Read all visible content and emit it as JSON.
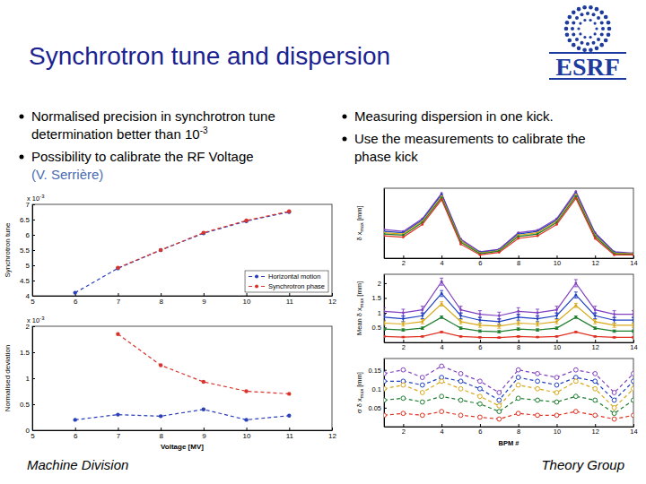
{
  "slide": {
    "title": "Synchrotron tune and dispersion",
    "logo": "ESRF",
    "left_bullets": [
      {
        "lines": [
          "Normalised precision in synchrotron tune",
          "determination better than 10"
        ],
        "sup": "-3"
      },
      {
        "lines": [
          "Possibility to calibrate the RF Voltage"
        ],
        "credit": "(V. Serrière)"
      }
    ],
    "right_bullets": [
      {
        "lines": [
          "Measuring dispersion in one kick."
        ]
      },
      {
        "lines": [
          "Use the measurements to calibrate the",
          "phase kick"
        ]
      }
    ],
    "footer_left": "Machine Division",
    "footer_right": "Theory Group"
  },
  "chart_data": [
    {
      "type": "line",
      "ylabel": "Synchrotron tune",
      "y_multiplier": {
        "base": "x 10",
        "exponent": "-3"
      },
      "xlim": [
        5,
        12
      ],
      "xticks": [
        5,
        6,
        7,
        8,
        9,
        10,
        11,
        12
      ],
      "ylim": [
        4,
        7
      ],
      "yticks": [
        4,
        4.5,
        5,
        5.5,
        6,
        6.5,
        7
      ],
      "legend": "lower right",
      "series": [
        {
          "name": "Horizontal motion",
          "color": "#2b3fb8",
          "line_style": "dashed",
          "marker": "circle",
          "x": [
            6,
            7,
            8,
            9,
            10,
            11
          ],
          "values": [
            4.1,
            4.9,
            5.5,
            6.05,
            6.45,
            6.75
          ]
        },
        {
          "name": "Synchrotron phase",
          "color": "#d9342b",
          "line_style": "dashed",
          "marker": "circle",
          "x": [
            7,
            8,
            9,
            10,
            11
          ],
          "values": [
            4.92,
            5.5,
            6.07,
            6.47,
            6.77
          ]
        }
      ]
    },
    {
      "type": "line",
      "ylabel": "Normalised deviation",
      "xlabel": "Voltage [MV]",
      "y_multiplier": {
        "base": "x 10",
        "exponent": "-3"
      },
      "xlim": [
        5,
        12
      ],
      "xticks": [
        5,
        6,
        7,
        8,
        9,
        10,
        11,
        12
      ],
      "ylim": [
        0,
        2
      ],
      "yticks": [
        0,
        0.5,
        1,
        1.5,
        2
      ],
      "series": [
        {
          "color": "#d9342b",
          "line_style": "dashed",
          "marker": "circle",
          "x": [
            7,
            8,
            9,
            10,
            11
          ],
          "values": [
            1.85,
            1.25,
            0.93,
            0.75,
            0.7
          ]
        },
        {
          "color": "#2b3fb8",
          "line_style": "dashed",
          "marker": "circle",
          "x": [
            6,
            7,
            8,
            9,
            10,
            11
          ],
          "values": [
            0.2,
            0.3,
            0.27,
            0.4,
            0.2,
            0.28
          ]
        }
      ]
    },
    {
      "type": "line",
      "ylabel": {
        "text": "δ x",
        "sub": "max",
        "unit": " [mm]"
      },
      "xlim": [
        1,
        14
      ],
      "xticks": [
        2,
        4,
        6,
        8,
        10,
        12,
        14
      ],
      "ylim": [
        0,
        1.1
      ],
      "tick_labels": "x",
      "marker": "point",
      "x": [
        1,
        2,
        3,
        4,
        5,
        6,
        7,
        8,
        9,
        10,
        11,
        12,
        13,
        14
      ],
      "series": [
        {
          "color": "#8040c0",
          "values": [
            0.45,
            0.42,
            0.62,
            1.02,
            0.3,
            0.1,
            0.14,
            0.4,
            0.44,
            0.62,
            1.05,
            0.4,
            0.1,
            0.08
          ]
        },
        {
          "color": "#2040c0",
          "values": [
            0.42,
            0.4,
            0.6,
            1.0,
            0.28,
            0.09,
            0.13,
            0.38,
            0.42,
            0.6,
            1.02,
            0.38,
            0.09,
            0.07
          ]
        },
        {
          "color": "#d8a818",
          "values": [
            0.4,
            0.38,
            0.58,
            0.97,
            0.27,
            0.08,
            0.12,
            0.36,
            0.4,
            0.58,
            1.0,
            0.36,
            0.08,
            0.07
          ]
        },
        {
          "color": "#1e7d2e",
          "values": [
            0.38,
            0.36,
            0.56,
            0.95,
            0.25,
            0.07,
            0.11,
            0.34,
            0.38,
            0.56,
            0.97,
            0.34,
            0.07,
            0.06
          ]
        },
        {
          "color": "#e03020",
          "values": [
            0.35,
            0.33,
            0.53,
            0.92,
            0.22,
            0.05,
            0.09,
            0.31,
            0.35,
            0.53,
            0.94,
            0.31,
            0.05,
            0.05
          ]
        }
      ]
    },
    {
      "type": "line",
      "ylabel": {
        "text": "Mean δ x",
        "sub": "max",
        "unit": " [mm]"
      },
      "xlim": [
        1,
        14
      ],
      "xticks": [
        2,
        4,
        6,
        8,
        10,
        12,
        14
      ],
      "ylim": [
        0,
        2.3
      ],
      "yticks": [
        0.5,
        1,
        1.5,
        2
      ],
      "marker": "point",
      "x": [
        1,
        2,
        3,
        4,
        5,
        6,
        7,
        8,
        9,
        10,
        11,
        12,
        13,
        14
      ],
      "series": [
        {
          "color": "#8040c0",
          "values": [
            1.05,
            1.0,
            1.1,
            2.05,
            1.1,
            0.95,
            0.9,
            1.05,
            1.0,
            1.1,
            2.0,
            1.1,
            0.95,
            0.95
          ],
          "errors": [
            0.12,
            0.12,
            0.12,
            0.12,
            0.12,
            0.12,
            0.12,
            0.12,
            0.12,
            0.12,
            0.12,
            0.12,
            0.12,
            0.12
          ]
        },
        {
          "color": "#2040c0",
          "values": [
            0.85,
            0.8,
            0.9,
            1.65,
            0.9,
            0.75,
            0.7,
            0.85,
            0.8,
            0.9,
            1.6,
            0.9,
            0.75,
            0.75
          ],
          "errors": [
            0.1,
            0.1,
            0.1,
            0.1,
            0.1,
            0.1,
            0.1,
            0.1,
            0.1,
            0.1,
            0.1,
            0.1,
            0.1,
            0.1
          ]
        },
        {
          "color": "#d8a818",
          "values": [
            0.65,
            0.62,
            0.7,
            1.3,
            0.7,
            0.58,
            0.55,
            0.65,
            0.62,
            0.7,
            1.25,
            0.7,
            0.58,
            0.58
          ],
          "errors": [
            0.07,
            0.07,
            0.07,
            0.07,
            0.07,
            0.07,
            0.07,
            0.07,
            0.07,
            0.07,
            0.07,
            0.07,
            0.07,
            0.07
          ]
        },
        {
          "color": "#1e7d2e",
          "values": [
            0.45,
            0.42,
            0.48,
            0.85,
            0.48,
            0.38,
            0.36,
            0.45,
            0.42,
            0.48,
            0.85,
            0.48,
            0.38,
            0.38
          ],
          "errors": [
            0.04,
            0.04,
            0.04,
            0.04,
            0.04,
            0.04,
            0.04,
            0.04,
            0.04,
            0.04,
            0.04,
            0.04,
            0.04,
            0.04
          ]
        },
        {
          "color": "#e03020",
          "values": [
            0.2,
            0.18,
            0.2,
            0.35,
            0.2,
            0.17,
            0.16,
            0.2,
            0.18,
            0.2,
            0.35,
            0.2,
            0.17,
            0.17
          ],
          "errors": [
            0.02,
            0.02,
            0.02,
            0.02,
            0.02,
            0.02,
            0.02,
            0.02,
            0.02,
            0.02,
            0.02,
            0.02,
            0.02,
            0.02
          ]
        }
      ]
    },
    {
      "type": "line",
      "ylabel": {
        "text": "σ δ x",
        "sub": "max",
        "unit": " [mm]"
      },
      "xlabel": "BPM #",
      "xlim": [
        1,
        14
      ],
      "xticks": [
        2,
        4,
        6,
        8,
        10,
        12,
        14
      ],
      "ylim": [
        0,
        0.18
      ],
      "yticks": [
        0.05,
        0.1,
        0.15
      ],
      "marker": "open_circle",
      "line_style": "dashed",
      "x": [
        1,
        2,
        3,
        4,
        5,
        6,
        7,
        8,
        9,
        10,
        11,
        12,
        13,
        14
      ],
      "series": [
        {
          "color": "#8040c0",
          "values": [
            0.14,
            0.15,
            0.13,
            0.16,
            0.14,
            0.12,
            0.09,
            0.15,
            0.14,
            0.13,
            0.15,
            0.14,
            0.09,
            0.14
          ]
        },
        {
          "color": "#2040c0",
          "values": [
            0.12,
            0.12,
            0.11,
            0.13,
            0.12,
            0.1,
            0.07,
            0.13,
            0.12,
            0.11,
            0.13,
            0.12,
            0.07,
            0.12
          ]
        },
        {
          "color": "#d8a818",
          "values": [
            0.1,
            0.11,
            0.09,
            0.12,
            0.1,
            0.08,
            0.055,
            0.11,
            0.1,
            0.09,
            0.12,
            0.1,
            0.05,
            0.1
          ]
        },
        {
          "color": "#1e7d2e",
          "values": [
            0.07,
            0.075,
            0.065,
            0.08,
            0.07,
            0.06,
            0.04,
            0.075,
            0.07,
            0.065,
            0.08,
            0.07,
            0.035,
            0.07
          ]
        },
        {
          "color": "#e03020",
          "values": [
            0.03,
            0.035,
            0.03,
            0.04,
            0.03,
            0.025,
            0.02,
            0.035,
            0.03,
            0.03,
            0.04,
            0.03,
            0.02,
            0.03
          ]
        }
      ]
    }
  ]
}
